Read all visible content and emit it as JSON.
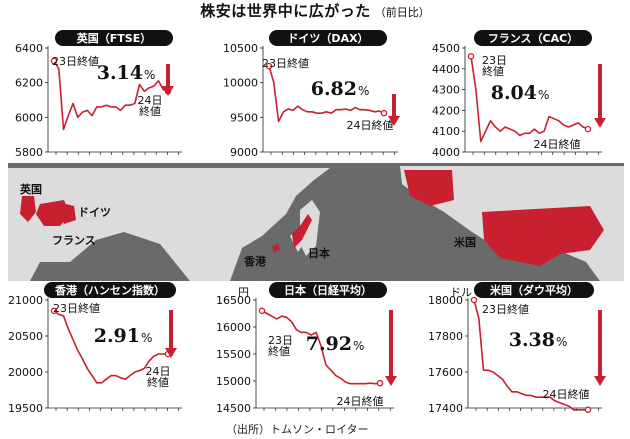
{
  "header": {
    "title": "株安は世界中に広がった",
    "subtitle": "（前日比）"
  },
  "source": "（出所）トムソン・ロイター",
  "colors": {
    "line": "#c8202f",
    "arrow": "#c8202f",
    "map_land": "#dcdcdc",
    "map_ocean": "#6a6a6a",
    "highlight": "#c8202f",
    "badge_bg": "#111111",
    "badge_text": "#ffffff"
  },
  "map": {
    "labels": [
      "英国",
      "ドイツ",
      "フランス",
      "香港",
      "日本",
      "米国"
    ]
  },
  "chart_data": [
    {
      "type": "line",
      "title": "英国（FTSE）",
      "unit_label": "",
      "ylim": [
        5800,
        6400
      ],
      "yticks": [
        5800,
        6000,
        6200,
        6400
      ],
      "change": "3.14",
      "start_label": "23日終値",
      "end_label": "24日\n終値",
      "x": [
        0,
        1,
        2,
        3,
        4,
        5,
        6,
        7,
        8,
        9,
        10,
        11,
        12,
        13,
        14,
        15,
        16,
        17,
        18,
        19,
        20,
        21,
        22,
        23,
        24
      ],
      "values": [
        6325,
        6280,
        5930,
        6010,
        6080,
        6000,
        6030,
        6040,
        6010,
        6060,
        6060,
        6070,
        6060,
        6060,
        6040,
        6070,
        6070,
        6080,
        6190,
        6150,
        6170,
        6180,
        6210,
        6160,
        6150
      ]
    },
    {
      "type": "line",
      "title": "ドイツ（DAX）",
      "unit_label": "",
      "ylim": [
        9000,
        10500
      ],
      "yticks": [
        9000,
        9500,
        10000,
        10500
      ],
      "change": "6.82",
      "start_label": "23日終値",
      "end_label": "24日終値",
      "x": [
        0,
        1,
        2,
        3,
        4,
        5,
        6,
        7,
        8,
        9,
        10,
        11,
        12,
        13,
        14,
        15,
        16,
        17,
        18,
        19,
        20,
        21,
        22,
        23,
        24
      ],
      "values": [
        10240,
        10000,
        9440,
        9580,
        9620,
        9600,
        9660,
        9610,
        9580,
        9580,
        9560,
        9560,
        9580,
        9560,
        9610,
        9610,
        9620,
        9600,
        9640,
        9610,
        9610,
        9600,
        9580,
        9590,
        9560
      ]
    },
    {
      "type": "line",
      "title": "フランス（CAC）",
      "unit_label": "",
      "ylim": [
        4000,
        4500
      ],
      "yticks": [
        4000,
        4100,
        4200,
        4300,
        4400,
        4500
      ],
      "change": "8.04",
      "start_label": "23日\n終値",
      "end_label": "24日終値",
      "x": [
        0,
        1,
        2,
        3,
        4,
        5,
        6,
        7,
        8,
        9,
        10,
        11,
        12,
        13,
        14,
        15,
        16,
        17,
        18,
        19,
        20,
        21,
        22,
        23,
        24
      ],
      "values": [
        4460,
        4300,
        4050,
        4100,
        4150,
        4120,
        4100,
        4120,
        4110,
        4100,
        4080,
        4090,
        4090,
        4110,
        4090,
        4100,
        4170,
        4160,
        4150,
        4130,
        4120,
        4130,
        4140,
        4120,
        4110
      ]
    },
    {
      "type": "line",
      "title": "香港（ハンセン指数）",
      "unit_label": "",
      "ylim": [
        19500,
        21000
      ],
      "yticks": [
        19500,
        20000,
        20500,
        21000
      ],
      "change": "2.91",
      "start_label": "23日終値",
      "end_label": "24日\n終値",
      "x": [
        0,
        1,
        2,
        3,
        4,
        5,
        6,
        7,
        8,
        9,
        10,
        11,
        12,
        13,
        14,
        15,
        16,
        17,
        18,
        19,
        20,
        21,
        22,
        23,
        24
      ],
      "values": [
        20850,
        20800,
        20780,
        20600,
        20450,
        20300,
        20180,
        20050,
        19950,
        19850,
        19850,
        19900,
        19950,
        19950,
        19920,
        19900,
        19950,
        20000,
        20020,
        20050,
        20150,
        20220,
        20250,
        20250,
        20250
      ]
    },
    {
      "type": "line",
      "title": "日本（日経平均）",
      "unit_label": "円",
      "ylim": [
        14500,
        16500
      ],
      "yticks": [
        14500,
        15000,
        15500,
        16000,
        16500
      ],
      "change": "7.92",
      "start_label": "23日\n終値",
      "end_label": "24日終値",
      "x": [
        0,
        1,
        2,
        3,
        4,
        5,
        6,
        7,
        8,
        9,
        10,
        11,
        12,
        13,
        14,
        15,
        16,
        17,
        18,
        19,
        20,
        21,
        22,
        23,
        24
      ],
      "values": [
        16300,
        16250,
        16200,
        16150,
        16200,
        16180,
        16100,
        15950,
        15900,
        15900,
        15850,
        15900,
        15650,
        15300,
        15200,
        15100,
        15050,
        14980,
        14950,
        14950,
        14950,
        14950,
        14960,
        14950,
        14960
      ]
    },
    {
      "type": "line",
      "title": "米国（ダウ平均）",
      "unit_label": "ドル",
      "ylim": [
        17400,
        18000
      ],
      "yticks": [
        17400,
        17600,
        17800,
        18000
      ],
      "change": "3.38",
      "start_label": "23日終値",
      "end_label": "24日終値",
      "x": [
        0,
        1,
        2,
        3,
        4,
        5,
        6,
        7,
        8,
        9,
        10,
        11,
        12,
        13,
        14,
        15,
        16,
        17,
        18,
        19,
        20,
        21,
        22,
        23,
        24
      ],
      "values": [
        18000,
        17900,
        17610,
        17610,
        17600,
        17580,
        17560,
        17520,
        17490,
        17490,
        17480,
        17470,
        17470,
        17460,
        17460,
        17460,
        17460,
        17440,
        17430,
        17420,
        17410,
        17390,
        17390,
        17390,
        17390
      ]
    }
  ]
}
